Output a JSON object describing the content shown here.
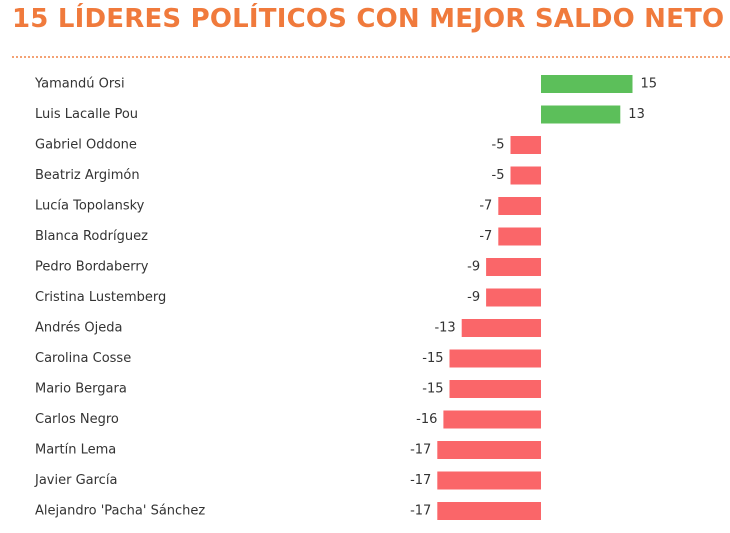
{
  "header": {
    "title": "15 LÍDERES POLÍTICOS CON MEJOR SALDO NETO"
  },
  "colors": {
    "title": "#F07A3C",
    "divider": "#F4A274",
    "positive": "#5CBF5A",
    "negative": "#FA6669",
    "label_text": "#333333"
  },
  "chart_data": {
    "type": "bar",
    "orientation": "horizontal",
    "title": "15 LÍDERES POLÍTICOS CON MEJOR SALDO NETO",
    "xlabel": "",
    "ylabel": "",
    "grid": false,
    "legend": "none",
    "xlim": [
      -17,
      15
    ],
    "categories": [
      "Yamandú Orsi",
      "Luis Lacalle Pou",
      "Gabriel Oddone",
      "Beatriz Argimón",
      "Lucía Topolansky",
      "Blanca Rodríguez",
      "Pedro Bordaberry",
      "Cristina Lustemberg",
      "Andrés Ojeda",
      "Carolina Cosse",
      "Mario Bergara",
      "Carlos Negro",
      "Martín Lema",
      "Javier García",
      "Alejandro 'Pacha' Sánchez"
    ],
    "values": [
      15,
      13,
      -5,
      -5,
      -7,
      -7,
      -9,
      -9,
      -13,
      -15,
      -15,
      -16,
      -17,
      -17,
      -17
    ],
    "value_labels": [
      "15",
      "13",
      "-5",
      "-5",
      "-7",
      "-7",
      "-9",
      "-9",
      "-13",
      "-15",
      "-15",
      "-16",
      "-17",
      "-17",
      "-17"
    ]
  }
}
